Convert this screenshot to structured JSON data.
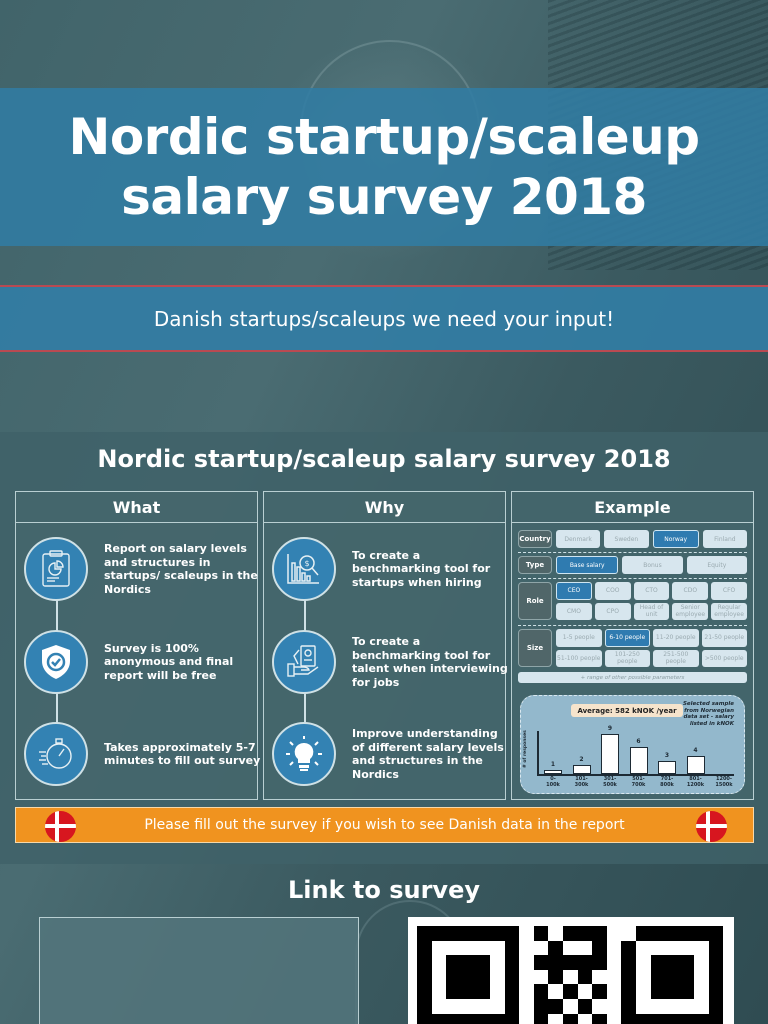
{
  "hero": {
    "title_line1": "Nordic startup/scaleup",
    "title_line2": "salary survey 2018"
  },
  "sub_banner": {
    "text": "Danish startups/scaleups we need your input!"
  },
  "section": {
    "title": "Nordic startup/scaleup salary survey 2018"
  },
  "columns": {
    "what": {
      "heading": "What",
      "items": [
        {
          "icon": "report-clipboard-icon",
          "text": "Report on salary levels and structures in startups/ scaleups in the Nordics"
        },
        {
          "icon": "shield-check-icon",
          "text": "Survey is 100% anonymous and final report will be free"
        },
        {
          "icon": "stopwatch-icon",
          "text": "Takes approximately 5-7 minutes to fill out survey"
        }
      ]
    },
    "why": {
      "heading": "Why",
      "items": [
        {
          "icon": "chart-magnifier-icon",
          "text": "To create a benchmarking tool for startups when hiring"
        },
        {
          "icon": "hand-cv-icon",
          "text": "To create a benchmarking tool for talent when interviewing for jobs"
        },
        {
          "icon": "lightbulb-icon",
          "text": "Improve understanding of different salary levels and structures in the Nordics"
        }
      ]
    },
    "example": {
      "heading": "Example",
      "country": {
        "label": "Country",
        "options": [
          "Denmark",
          "Sweden",
          "Norway",
          "Finland"
        ],
        "selected": "Norway"
      },
      "type": {
        "label": "Type",
        "options": [
          "Base salary",
          "Bonus",
          "Equity"
        ],
        "selected": "Base salary"
      },
      "role": {
        "label": "Role",
        "options": [
          "CEO",
          "COO",
          "CTO",
          "CDO",
          "CFO",
          "CMO",
          "CPO",
          "Head of unit",
          "Senior employee",
          "Regular employee"
        ],
        "selected": "CEO"
      },
      "size": {
        "label": "Size",
        "options": [
          "1-5 people",
          "6-10 people",
          "11-20 people",
          "21-50 people",
          "51-100 people",
          "101-250 people",
          "251-500 people",
          ">500 people"
        ],
        "selected": "6-10 people"
      },
      "range_note": "+ range of other possible parameters"
    }
  },
  "chart_data": {
    "type": "bar",
    "title": "Average: 582 kNOK /year",
    "annotation": "Selected sample from Norwegian data set - salary listed in kNOK",
    "ylabel": "# of responses",
    "xlabel": "",
    "categories": [
      "0-100k",
      "101-300k",
      "301-500k",
      "501-700k",
      "701-800k",
      "801-1200k",
      "1200-1500k"
    ],
    "values": [
      1,
      2,
      9,
      6,
      3,
      4,
      0
    ],
    "ylim": [
      0,
      10
    ],
    "grid": false,
    "legend": "none"
  },
  "cta": {
    "text": "Please fill out the survey if you wish to see Danish data in the report"
  },
  "link": {
    "title": "Link to survey"
  },
  "colors": {
    "accent_blue": "#3382b3",
    "orange": "#f0931f",
    "flag_red": "#d7161f",
    "stripe_red": "#b94a52"
  }
}
